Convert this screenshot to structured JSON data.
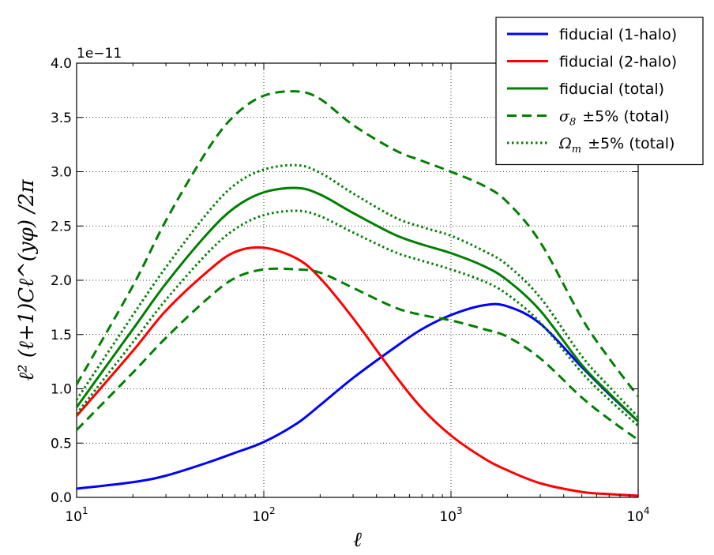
{
  "chart_data": {
    "type": "line",
    "xscale": "log",
    "xlim": [
      10,
      10000
    ],
    "ylim": [
      0,
      4.0
    ],
    "y_multiplier": "1e−11",
    "xlabel": "ℓ",
    "ylabel": "ℓ² (ℓ+1)Cℓ^(yφ) /2π",
    "grid": true,
    "legend_position": "upper right",
    "x_ticks": [
      10,
      100,
      1000,
      10000
    ],
    "x_tick_labels": [
      {
        "base": "10",
        "exp": "1"
      },
      {
        "base": "10",
        "exp": "2"
      },
      {
        "base": "10",
        "exp": "3"
      },
      {
        "base": "10",
        "exp": "4"
      }
    ],
    "y_ticks": [
      0.0,
      0.5,
      1.0,
      1.5,
      2.0,
      2.5,
      3.0,
      3.5,
      4.0
    ],
    "y_tick_labels": [
      "0.0",
      "0.5",
      "1.0",
      "1.5",
      "2.0",
      "2.5",
      "3.0",
      "3.5",
      "4.0"
    ],
    "series": [
      {
        "name": "fiducial (1-halo)",
        "color": "#0000ff",
        "style": "solid",
        "x": [
          10,
          20,
          30,
          50,
          70,
          100,
          150,
          200,
          300,
          500,
          700,
          1000,
          1500,
          2000,
          3000,
          5000,
          7000,
          10000
        ],
        "y": [
          0.08,
          0.14,
          0.2,
          0.32,
          0.41,
          0.51,
          0.68,
          0.85,
          1.1,
          1.38,
          1.55,
          1.68,
          1.77,
          1.76,
          1.6,
          1.2,
          0.95,
          0.7
        ]
      },
      {
        "name": "fiducial (2-halo)",
        "color": "#ff0000",
        "style": "solid",
        "x": [
          10,
          20,
          30,
          50,
          70,
          100,
          150,
          200,
          300,
          500,
          700,
          1000,
          1500,
          2000,
          3000,
          5000,
          7000,
          10000
        ],
        "y": [
          0.75,
          1.35,
          1.72,
          2.08,
          2.26,
          2.3,
          2.2,
          2.02,
          1.65,
          1.13,
          0.82,
          0.57,
          0.36,
          0.25,
          0.13,
          0.05,
          0.03,
          0.015
        ]
      },
      {
        "name": "fiducial (total)",
        "color": "#007f00",
        "style": "solid",
        "x": [
          10,
          20,
          30,
          50,
          70,
          100,
          150,
          200,
          300,
          500,
          700,
          1000,
          1500,
          2000,
          3000,
          5000,
          7000,
          10000
        ],
        "y": [
          0.83,
          1.55,
          1.97,
          2.43,
          2.67,
          2.81,
          2.85,
          2.79,
          2.62,
          2.42,
          2.33,
          2.25,
          2.13,
          2.0,
          1.72,
          1.22,
          0.96,
          0.7
        ]
      },
      {
        "name": "σ₈ ±5% (total)",
        "label_parts": {
          "sym": "σ",
          "sub": "8",
          "rest": "±5% (total)"
        },
        "color": "#007f00",
        "style": "dashed",
        "x": [
          10,
          20,
          30,
          50,
          70,
          100,
          150,
          200,
          300,
          500,
          700,
          1000,
          1500,
          2000,
          3000,
          5000,
          7000,
          10000
        ],
        "y": [
          1.04,
          1.95,
          2.55,
          3.2,
          3.52,
          3.7,
          3.74,
          3.67,
          3.43,
          3.2,
          3.1,
          3.0,
          2.87,
          2.72,
          2.35,
          1.65,
          1.28,
          0.93
        ]
      },
      {
        "name": "σ₈ ±5% (total) lower",
        "color": "#007f00",
        "style": "dashed",
        "legend": false,
        "x": [
          10,
          20,
          30,
          50,
          70,
          100,
          150,
          200,
          300,
          500,
          700,
          1000,
          1500,
          2000,
          3000,
          5000,
          7000,
          10000
        ],
        "y": [
          0.62,
          1.15,
          1.47,
          1.83,
          2.02,
          2.1,
          2.1,
          2.07,
          1.93,
          1.75,
          1.68,
          1.63,
          1.55,
          1.48,
          1.28,
          0.92,
          0.72,
          0.53
        ]
      },
      {
        "name": "Ωm ±5% (total)",
        "label_parts": {
          "sym": "Ω",
          "sub": "m",
          "rest": "±5% (total)"
        },
        "color": "#007f00",
        "style": "dotted",
        "x": [
          10,
          20,
          30,
          50,
          70,
          100,
          150,
          200,
          300,
          500,
          700,
          1000,
          1500,
          2000,
          3000,
          5000,
          7000,
          10000
        ],
        "y": [
          0.9,
          1.68,
          2.12,
          2.62,
          2.88,
          3.02,
          3.06,
          2.99,
          2.8,
          2.58,
          2.49,
          2.41,
          2.27,
          2.14,
          1.84,
          1.3,
          1.02,
          0.74
        ]
      },
      {
        "name": "Ωm ±5% (total) lower",
        "color": "#007f00",
        "style": "dotted",
        "legend": false,
        "x": [
          10,
          20,
          30,
          50,
          70,
          100,
          150,
          200,
          300,
          500,
          700,
          1000,
          1500,
          2000,
          3000,
          5000,
          7000,
          10000
        ],
        "y": [
          0.77,
          1.43,
          1.82,
          2.25,
          2.47,
          2.6,
          2.64,
          2.59,
          2.44,
          2.26,
          2.18,
          2.1,
          1.99,
          1.87,
          1.61,
          1.15,
          0.9,
          0.66
        ]
      }
    ]
  }
}
